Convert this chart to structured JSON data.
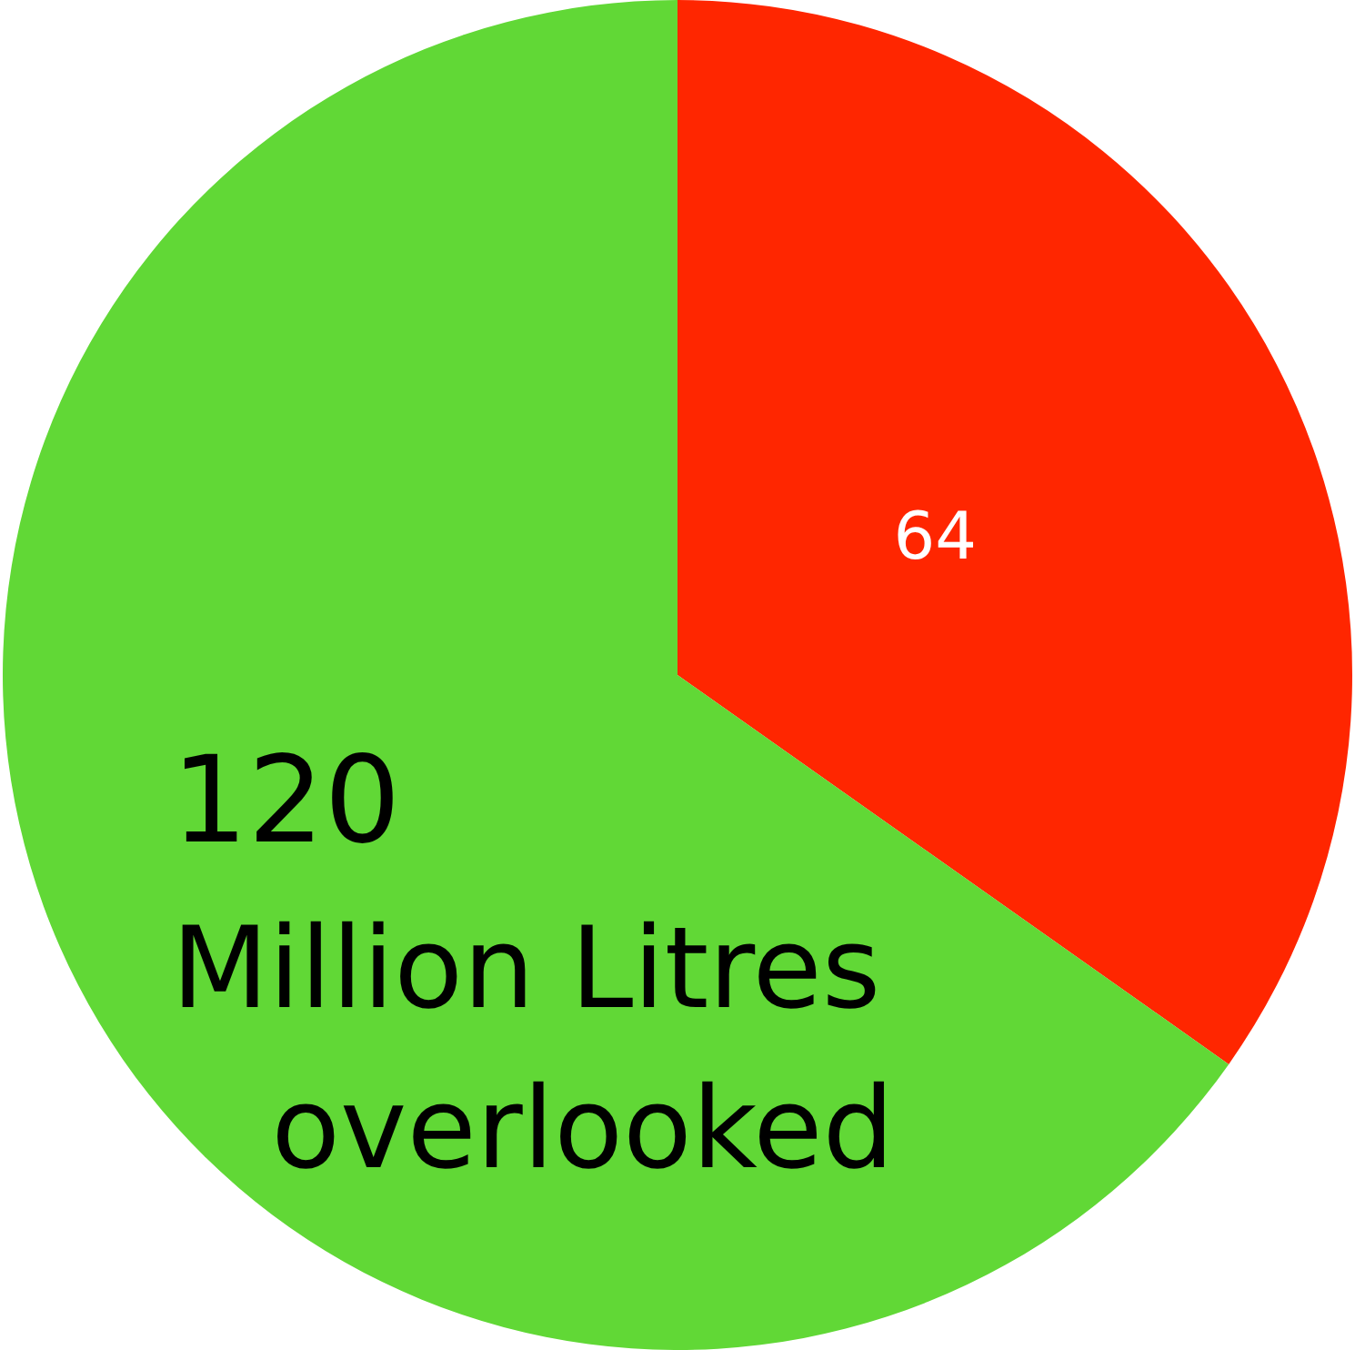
{
  "chart_data": {
    "type": "pie",
    "categories": [
      null,
      null
    ],
    "values": [
      64,
      120
    ],
    "colors": [
      "#ff2600",
      "#61d836"
    ],
    "data_labels": true,
    "legend": false,
    "annotations": [
      "Million Litres overlooked"
    ]
  }
}
